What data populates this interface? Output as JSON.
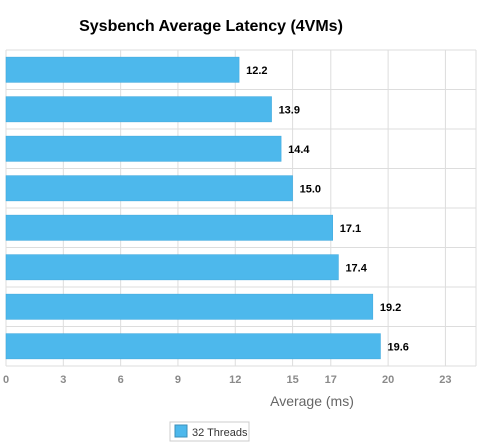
{
  "chart_data": {
    "type": "bar",
    "orientation": "horizontal",
    "title": "Sysbench Average Latency (4VMs)",
    "xlabel": "Average (ms)",
    "ylabel": "",
    "categories": [
      "",
      "",
      "",
      "",
      "",
      "",
      "",
      ""
    ],
    "series": [
      {
        "name": "32 Threads",
        "color": "#4db8ec",
        "values": [
          12.2,
          13.9,
          14.4,
          15.0,
          17.1,
          17.4,
          19.2,
          19.6
        ]
      }
    ],
    "data_labels": [
      "12.2",
      "13.9",
      "14.4",
      "15.0",
      "17.1",
      "17.4",
      "19.2",
      "19.6"
    ],
    "xlim": [
      0,
      24.6
    ],
    "x_ticks": [
      0,
      3,
      6,
      9,
      12,
      15,
      17,
      20,
      23
    ],
    "x_tick_labels": [
      "0",
      "3",
      "6",
      "9",
      "12",
      "15",
      "17",
      "20",
      "23"
    ],
    "grid": true,
    "legend_position": "bottom-center"
  }
}
